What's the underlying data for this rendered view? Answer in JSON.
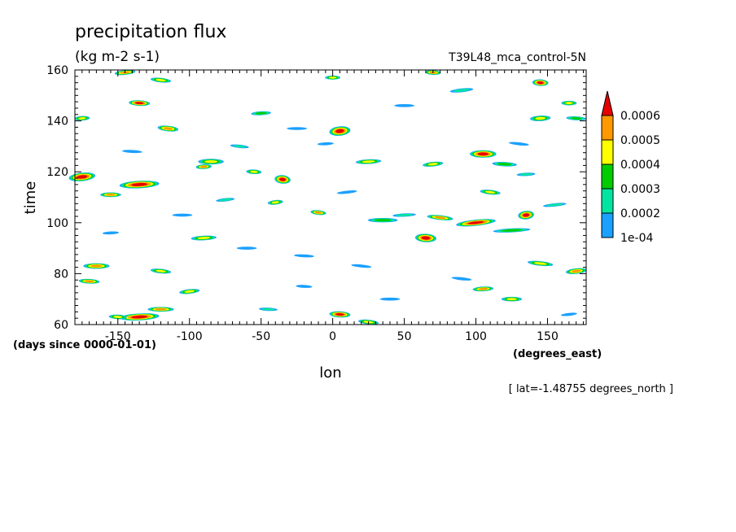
{
  "chart_data": {
    "type": "heatmap",
    "title": "precipitation flux",
    "units": "(kg m-2 s-1)",
    "experiment": "T39L48_mca_control-5N",
    "xlabel": "lon",
    "xunits": "(degrees_east)",
    "ylabel": "time",
    "yunits": "(days since 0000-01-01)",
    "slice_note": "[ lat=-1.48755 degrees_north ]",
    "xlim": [
      -180,
      177
    ],
    "ylim": [
      60,
      160
    ],
    "xticks": [
      -150,
      -100,
      -50,
      0,
      50,
      100,
      150
    ],
    "yticks": [
      60,
      80,
      100,
      120,
      140,
      160
    ],
    "colorbar": {
      "levels": [
        "1e-04",
        "0.0002",
        "0.0003",
        "0.0004",
        "0.0005",
        "0.0006"
      ],
      "colors": [
        "#1aa0ff",
        "#00e6a0",
        "#00cc00",
        "#ffff00",
        "#ff9900",
        "#e60000"
      ],
      "extend": "max"
    },
    "features": [
      {
        "x": -175,
        "y": 118,
        "peak": 0.0007,
        "rx": 10,
        "ry": 1.8
      },
      {
        "x": -135,
        "y": 115,
        "peak": 0.0007,
        "rx": 15,
        "ry": 1.6
      },
      {
        "x": -155,
        "y": 111,
        "peak": 0.0006,
        "rx": 8,
        "ry": 1.0
      },
      {
        "x": -135,
        "y": 147,
        "peak": 0.0007,
        "rx": 8,
        "ry": 1.2
      },
      {
        "x": -115,
        "y": 137,
        "peak": 0.0006,
        "rx": 8,
        "ry": 1.2
      },
      {
        "x": -145,
        "y": 159,
        "peak": 0.0006,
        "rx": 8,
        "ry": 1.0
      },
      {
        "x": -175,
        "y": 141,
        "peak": 0.0005,
        "rx": 6,
        "ry": 1.0
      },
      {
        "x": -85,
        "y": 124,
        "peak": 0.0005,
        "rx": 10,
        "ry": 1.2
      },
      {
        "x": -55,
        "y": 120,
        "peak": 0.0005,
        "rx": 6,
        "ry": 1.0
      },
      {
        "x": -35,
        "y": 117,
        "peak": 0.0007,
        "rx": 6,
        "ry": 1.8
      },
      {
        "x": -40,
        "y": 108,
        "peak": 0.0005,
        "rx": 6,
        "ry": 1.0
      },
      {
        "x": -90,
        "y": 94,
        "peak": 0.0005,
        "rx": 10,
        "ry": 1.0
      },
      {
        "x": -165,
        "y": 83,
        "peak": 0.0006,
        "rx": 10,
        "ry": 1.2
      },
      {
        "x": -170,
        "y": 77,
        "peak": 0.0006,
        "rx": 8,
        "ry": 1.0
      },
      {
        "x": -120,
        "y": 81,
        "peak": 0.0005,
        "rx": 8,
        "ry": 1.0
      },
      {
        "x": -100,
        "y": 73,
        "peak": 0.0005,
        "rx": 8,
        "ry": 1.0
      },
      {
        "x": -135,
        "y": 63,
        "peak": 0.0007,
        "rx": 15,
        "ry": 1.5
      },
      {
        "x": -120,
        "y": 66,
        "peak": 0.0006,
        "rx": 10,
        "ry": 1.0
      },
      {
        "x": -150,
        "y": 63,
        "peak": 0.0005,
        "rx": 7,
        "ry": 1.0
      },
      {
        "x": -10,
        "y": 104,
        "peak": 0.0006,
        "rx": 6,
        "ry": 1.0
      },
      {
        "x": 5,
        "y": 136,
        "peak": 0.0007,
        "rx": 8,
        "ry": 2.0
      },
      {
        "x": 25,
        "y": 124,
        "peak": 0.0005,
        "rx": 10,
        "ry": 1.0
      },
      {
        "x": 35,
        "y": 101,
        "peak": 0.0004,
        "rx": 12,
        "ry": 1.0
      },
      {
        "x": 65,
        "y": 94,
        "peak": 0.0007,
        "rx": 8,
        "ry": 1.8
      },
      {
        "x": 75,
        "y": 102,
        "peak": 0.0006,
        "rx": 10,
        "ry": 1.0
      },
      {
        "x": 100,
        "y": 100,
        "peak": 0.0007,
        "rx": 15,
        "ry": 1.3
      },
      {
        "x": 125,
        "y": 97,
        "peak": 0.0004,
        "rx": 15,
        "ry": 0.9
      },
      {
        "x": 105,
        "y": 127,
        "peak": 0.0007,
        "rx": 10,
        "ry": 1.6
      },
      {
        "x": 120,
        "y": 123,
        "peak": 0.0004,
        "rx": 10,
        "ry": 1.0
      },
      {
        "x": 110,
        "y": 112,
        "peak": 0.0005,
        "rx": 8,
        "ry": 1.0
      },
      {
        "x": 135,
        "y": 103,
        "peak": 0.0007,
        "rx": 6,
        "ry": 1.8
      },
      {
        "x": 145,
        "y": 141,
        "peak": 0.0005,
        "rx": 8,
        "ry": 1.2
      },
      {
        "x": 165,
        "y": 147,
        "peak": 0.0005,
        "rx": 6,
        "ry": 1.0
      },
      {
        "x": 145,
        "y": 155,
        "peak": 0.0007,
        "rx": 6,
        "ry": 1.4
      },
      {
        "x": 145,
        "y": 84,
        "peak": 0.0005,
        "rx": 10,
        "ry": 1.0
      },
      {
        "x": 170,
        "y": 81,
        "peak": 0.0006,
        "rx": 8,
        "ry": 1.2
      },
      {
        "x": 105,
        "y": 74,
        "peak": 0.0006,
        "rx": 8,
        "ry": 1.0
      },
      {
        "x": 125,
        "y": 70,
        "peak": 0.0005,
        "rx": 8,
        "ry": 1.0
      },
      {
        "x": 5,
        "y": 64,
        "peak": 0.0007,
        "rx": 8,
        "ry": 1.3
      },
      {
        "x": 25,
        "y": 61,
        "peak": 0.0005,
        "rx": 8,
        "ry": 1.0
      },
      {
        "x": 70,
        "y": 123,
        "peak": 0.0005,
        "rx": 8,
        "ry": 1.0
      },
      {
        "x": -90,
        "y": 122,
        "peak": 0.0006,
        "rx": 6,
        "ry": 1.0
      },
      {
        "x": 0,
        "y": 157,
        "peak": 0.0005,
        "rx": 6,
        "ry": 0.9
      },
      {
        "x": 70,
        "y": 159,
        "peak": 0.0006,
        "rx": 6,
        "ry": 1.0
      },
      {
        "x": -120,
        "y": 156,
        "peak": 0.0005,
        "rx": 8,
        "ry": 1.0
      },
      {
        "x": 90,
        "y": 152,
        "peak": 0.0003,
        "rx": 10,
        "ry": 0.9
      },
      {
        "x": -50,
        "y": 143,
        "peak": 0.0004,
        "rx": 8,
        "ry": 0.9
      },
      {
        "x": -25,
        "y": 137,
        "peak": 0.0002,
        "rx": 10,
        "ry": 0.8
      },
      {
        "x": 170,
        "y": 141,
        "peak": 0.0004,
        "rx": 8,
        "ry": 0.9
      },
      {
        "x": 130,
        "y": 131,
        "peak": 0.0002,
        "rx": 10,
        "ry": 0.8
      },
      {
        "x": 155,
        "y": 107,
        "peak": 0.0003,
        "rx": 10,
        "ry": 0.8
      },
      {
        "x": 50,
        "y": 103,
        "peak": 0.0003,
        "rx": 10,
        "ry": 0.8
      },
      {
        "x": -60,
        "y": 90,
        "peak": 0.0002,
        "rx": 10,
        "ry": 0.8
      },
      {
        "x": -20,
        "y": 87,
        "peak": 0.0002,
        "rx": 10,
        "ry": 0.8
      },
      {
        "x": 20,
        "y": 83,
        "peak": 0.0002,
        "rx": 10,
        "ry": 0.8
      },
      {
        "x": -75,
        "y": 109,
        "peak": 0.0003,
        "rx": 8,
        "ry": 0.8
      },
      {
        "x": -155,
        "y": 96,
        "peak": 0.0002,
        "rx": 8,
        "ry": 0.8
      },
      {
        "x": 40,
        "y": 70,
        "peak": 0.0002,
        "rx": 10,
        "ry": 0.8
      },
      {
        "x": -45,
        "y": 66,
        "peak": 0.0003,
        "rx": 8,
        "ry": 0.8
      },
      {
        "x": 90,
        "y": 78,
        "peak": 0.0002,
        "rx": 10,
        "ry": 0.8
      },
      {
        "x": 165,
        "y": 64,
        "peak": 0.0002,
        "rx": 8,
        "ry": 0.8
      },
      {
        "x": -5,
        "y": 131,
        "peak": 0.0002,
        "rx": 8,
        "ry": 0.8
      },
      {
        "x": 50,
        "y": 146,
        "peak": 0.0002,
        "rx": 10,
        "ry": 0.8
      },
      {
        "x": -140,
        "y": 128,
        "peak": 0.0002,
        "rx": 10,
        "ry": 0.8
      },
      {
        "x": -65,
        "y": 130,
        "peak": 0.0003,
        "rx": 8,
        "ry": 0.8
      },
      {
        "x": 10,
        "y": 112,
        "peak": 0.0002,
        "rx": 10,
        "ry": 0.8
      },
      {
        "x": 135,
        "y": 119,
        "peak": 0.0003,
        "rx": 8,
        "ry": 0.8
      },
      {
        "x": -105,
        "y": 103,
        "peak": 0.0002,
        "rx": 10,
        "ry": 0.8
      },
      {
        "x": -20,
        "y": 75,
        "peak": 0.0002,
        "rx": 8,
        "ry": 0.8
      }
    ]
  }
}
